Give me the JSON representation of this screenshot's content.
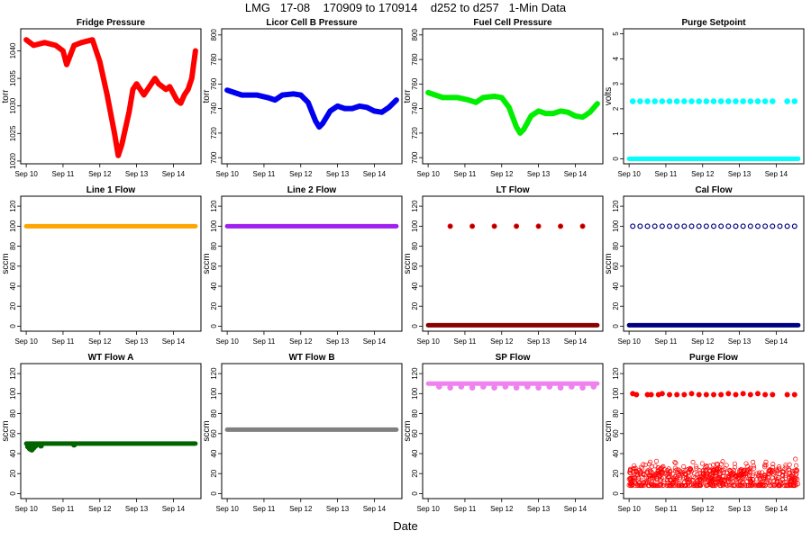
{
  "title": "LMG   17-08    170909 to 170914    d252 to d257   1-Min Data",
  "xlabel": "Date",
  "chart_data": [
    {
      "type": "scatter",
      "title": "Fridge Pressure",
      "ylabel": "torr",
      "ylim": [
        1019.5,
        1044
      ],
      "yticks": [
        1020,
        1025,
        1030,
        1035,
        1040
      ],
      "xticks": [
        "Sep 10",
        "Sep 11",
        "Sep 12",
        "Sep 13",
        "Sep 14"
      ],
      "color": "#ff0000",
      "series": [
        {
          "name": "Fridge Pressure",
          "x": [
            10,
            10.2,
            10.5,
            10.8,
            11.0,
            11.1,
            11.3,
            11.5,
            11.8,
            12.0,
            12.2,
            12.4,
            12.5,
            12.6,
            12.8,
            12.9,
            13.0,
            13.2,
            13.4,
            13.5,
            13.6,
            13.8,
            13.9,
            14.1,
            14.2,
            14.3,
            14.4,
            14.5,
            14.6
          ],
          "y": [
            1042,
            1041,
            1041.5,
            1041,
            1040,
            1037.5,
            1041,
            1041.5,
            1042,
            1038,
            1032,
            1025,
            1021,
            1023,
            1029,
            1033,
            1034,
            1032,
            1034,
            1035,
            1034,
            1033,
            1033.5,
            1031,
            1030.5,
            1032,
            1033,
            1035,
            1040
          ]
        }
      ]
    },
    {
      "type": "scatter",
      "title": "Licor Cell B Pressure",
      "ylabel": "torr",
      "ylim": [
        695,
        805
      ],
      "yticks": [
        700,
        720,
        740,
        760,
        780,
        800
      ],
      "xticks": [
        "Sep 10",
        "Sep 11",
        "Sep 12",
        "Sep 13",
        "Sep 14"
      ],
      "color": "#0000ee",
      "series": [
        {
          "name": "Licor Cell B Pressure",
          "x": [
            10,
            10.4,
            10.8,
            11.1,
            11.3,
            11.5,
            11.8,
            12.0,
            12.2,
            12.4,
            12.5,
            12.6,
            12.8,
            13.0,
            13.2,
            13.4,
            13.6,
            13.8,
            14.0,
            14.2,
            14.4,
            14.6
          ],
          "y": [
            755,
            751,
            751,
            749,
            747,
            751,
            752,
            751,
            745,
            730,
            725,
            728,
            738,
            742,
            740,
            740,
            742,
            741,
            738,
            737,
            741,
            747
          ]
        }
      ]
    },
    {
      "type": "scatter",
      "title": "Fuel Cell Pressure",
      "ylabel": "torr",
      "ylim": [
        695,
        805
      ],
      "yticks": [
        700,
        720,
        740,
        760,
        780,
        800
      ],
      "xticks": [
        "Sep 10",
        "Sep 11",
        "Sep 12",
        "Sep 13",
        "Sep 14"
      ],
      "color": "#00ee00",
      "series": [
        {
          "name": "Fuel Cell Pressure",
          "x": [
            10,
            10.4,
            10.8,
            11.1,
            11.3,
            11.5,
            11.8,
            12.0,
            12.2,
            12.4,
            12.5,
            12.6,
            12.8,
            13.0,
            13.2,
            13.4,
            13.6,
            13.8,
            14.0,
            14.2,
            14.4,
            14.6
          ],
          "y": [
            753,
            749,
            749,
            747,
            745,
            749,
            750,
            749,
            741,
            725,
            720,
            723,
            734,
            738,
            736,
            736,
            738,
            737,
            734,
            733,
            737,
            744
          ]
        }
      ]
    },
    {
      "type": "scatter",
      "title": "Purge Setpoint",
      "ylabel": "volts",
      "ylim": [
        -0.2,
        5.2
      ],
      "yticks": [
        0,
        1,
        2,
        3,
        4,
        5
      ],
      "xticks": [
        "Sep 10",
        "Sep 11",
        "Sep 12",
        "Sep 13",
        "Sep 14"
      ],
      "color": "#00ffff",
      "series": [
        {
          "name": "base",
          "x": [
            10,
            14.6
          ],
          "y": [
            0,
            0
          ],
          "style": "line"
        },
        {
          "name": "high",
          "x": [
            10.1,
            10.3,
            10.5,
            10.7,
            10.9,
            11.1,
            11.3,
            11.5,
            11.7,
            11.9,
            12.1,
            12.3,
            12.5,
            12.7,
            12.9,
            13.1,
            13.3,
            13.5,
            13.7,
            13.9,
            14.3,
            14.5
          ],
          "y": [
            2.3,
            2.3,
            2.3,
            2.3,
            2.3,
            2.3,
            2.3,
            2.3,
            2.3,
            2.3,
            2.3,
            2.3,
            2.3,
            2.3,
            2.3,
            2.3,
            2.3,
            2.3,
            2.3,
            2.3,
            2.3,
            2.3
          ]
        }
      ]
    },
    {
      "type": "line",
      "title": "Line 1 Flow",
      "ylabel": "sccm",
      "ylim": [
        -5,
        130
      ],
      "yticks": [
        0,
        20,
        40,
        60,
        80,
        100,
        120
      ],
      "xticks": [
        "Sep 10",
        "Sep 11",
        "Sep 12",
        "Sep 13",
        "Sep 14"
      ],
      "color": "#ffa500",
      "series": [
        {
          "name": "Line 1 Flow",
          "x": [
            10,
            14.6
          ],
          "y": [
            100,
            100
          ],
          "style": "line"
        }
      ]
    },
    {
      "type": "line",
      "title": "Line 2 Flow",
      "ylabel": "sccm",
      "ylim": [
        -5,
        130
      ],
      "yticks": [
        0,
        20,
        40,
        60,
        80,
        100,
        120
      ],
      "xticks": [
        "Sep 10",
        "Sep 11",
        "Sep 12",
        "Sep 13",
        "Sep 14"
      ],
      "color": "#a020f0",
      "series": [
        {
          "name": "Line 2 Flow",
          "x": [
            10,
            14.6
          ],
          "y": [
            100,
            100
          ],
          "style": "line"
        }
      ]
    },
    {
      "type": "scatter",
      "title": "LT Flow",
      "ylabel": "sccm",
      "ylim": [
        -5,
        130
      ],
      "yticks": [
        0,
        20,
        40,
        60,
        80,
        100,
        120
      ],
      "xticks": [
        "Sep 10",
        "Sep 11",
        "Sep 12",
        "Sep 13",
        "Sep 14"
      ],
      "color": "#8b0000",
      "series": [
        {
          "name": "base",
          "x": [
            10,
            14.6
          ],
          "y": [
            1,
            1
          ],
          "style": "line"
        },
        {
          "name": "spikes",
          "x": [
            10.6,
            11.2,
            11.8,
            12.4,
            13.0,
            13.6,
            14.2
          ],
          "y": [
            100,
            100,
            100,
            100,
            100,
            100,
            100
          ],
          "marker": "ring-red"
        }
      ]
    },
    {
      "type": "scatter",
      "title": "Cal Flow",
      "ylabel": "sccm",
      "ylim": [
        -5,
        130
      ],
      "yticks": [
        0,
        20,
        40,
        60,
        80,
        100,
        120
      ],
      "xticks": [
        "Sep 10",
        "Sep 11",
        "Sep 12",
        "Sep 13",
        "Sep 14"
      ],
      "color": "#000080",
      "series": [
        {
          "name": "base",
          "x": [
            10,
            14.6
          ],
          "y": [
            1,
            1
          ],
          "style": "line"
        },
        {
          "name": "cal",
          "x": [
            10.1,
            10.3,
            10.5,
            10.7,
            10.9,
            11.1,
            11.3,
            11.5,
            11.7,
            11.9,
            12.1,
            12.3,
            12.5,
            12.7,
            12.9,
            13.1,
            13.3,
            13.5,
            13.7,
            13.9,
            14.1,
            14.3,
            14.5
          ],
          "y": [
            100,
            100,
            100,
            100,
            100,
            100,
            100,
            100,
            100,
            100,
            100,
            100,
            100,
            100,
            100,
            100,
            100,
            100,
            100,
            100,
            100,
            100,
            100
          ],
          "marker": "ring"
        }
      ]
    },
    {
      "type": "line",
      "title": "WT Flow A",
      "ylabel": "sccm",
      "ylim": [
        -5,
        130
      ],
      "yticks": [
        0,
        20,
        40,
        60,
        80,
        100,
        120
      ],
      "xticks": [
        "Sep 10",
        "Sep 11",
        "Sep 12",
        "Sep 13",
        "Sep 14"
      ],
      "color": "#006400",
      "series": [
        {
          "name": "WT Flow A",
          "x": [
            10,
            14.6
          ],
          "y": [
            50,
            50
          ],
          "style": "line"
        },
        {
          "name": "dips",
          "x": [
            10.05,
            10.1,
            10.15,
            10.2,
            10.25,
            10.4,
            11.3
          ],
          "y": [
            47,
            45,
            44,
            46,
            48,
            48,
            49
          ]
        }
      ]
    },
    {
      "type": "line",
      "title": "WT Flow B",
      "ylabel": "sccm",
      "ylim": [
        -5,
        130
      ],
      "yticks": [
        0,
        20,
        40,
        60,
        80,
        100,
        120
      ],
      "xticks": [
        "Sep 10",
        "Sep 11",
        "Sep 12",
        "Sep 13",
        "Sep 14"
      ],
      "color": "#808080",
      "series": [
        {
          "name": "WT Flow B",
          "x": [
            10,
            14.6
          ],
          "y": [
            64,
            64
          ],
          "style": "line"
        }
      ]
    },
    {
      "type": "line",
      "title": "SP Flow",
      "ylabel": "sccm",
      "ylim": [
        -5,
        130
      ],
      "yticks": [
        0,
        20,
        40,
        60,
        80,
        100,
        120
      ],
      "xticks": [
        "Sep 10",
        "Sep 11",
        "Sep 12",
        "Sep 13",
        "Sep 14"
      ],
      "color": "#ee82ee",
      "series": [
        {
          "name": "SP Flow",
          "x": [
            10,
            14.6
          ],
          "y": [
            110,
            110
          ],
          "style": "line"
        },
        {
          "name": "dips",
          "x": [
            10.3,
            10.6,
            10.9,
            11.2,
            11.5,
            11.8,
            12.1,
            12.4,
            12.7,
            13.0,
            13.3,
            13.6,
            13.9,
            14.2,
            14.5
          ],
          "y": [
            107,
            106,
            107,
            106,
            107,
            106,
            107,
            106,
            107,
            106,
            107,
            106,
            107,
            106,
            107
          ]
        }
      ]
    },
    {
      "type": "scatter",
      "title": "Purge Flow",
      "ylabel": "sccm",
      "ylim": [
        -5,
        130
      ],
      "yticks": [
        0,
        20,
        40,
        60,
        80,
        100,
        120
      ],
      "xticks": [
        "Sep 10",
        "Sep 11",
        "Sep 12",
        "Sep 13",
        "Sep 14"
      ],
      "color": "#ff0000",
      "series": [
        {
          "name": "noise",
          "range": [
            8,
            38
          ],
          "x": [
            10,
            14.6
          ]
        },
        {
          "name": "high",
          "x": [
            10.1,
            10.2,
            10.5,
            10.6,
            10.8,
            10.9,
            11.1,
            11.3,
            11.5,
            11.7,
            11.9,
            12.1,
            12.3,
            12.5,
            12.7,
            12.9,
            13.1,
            13.3,
            13.5,
            13.7,
            13.9,
            14.3,
            14.5
          ],
          "y": [
            100,
            99,
            99,
            99,
            99,
            100,
            99,
            99,
            99,
            100,
            99,
            99,
            99,
            99,
            100,
            99,
            100,
            99,
            100,
            99,
            99,
            99,
            99
          ],
          "marker": "ring-red"
        }
      ]
    }
  ]
}
